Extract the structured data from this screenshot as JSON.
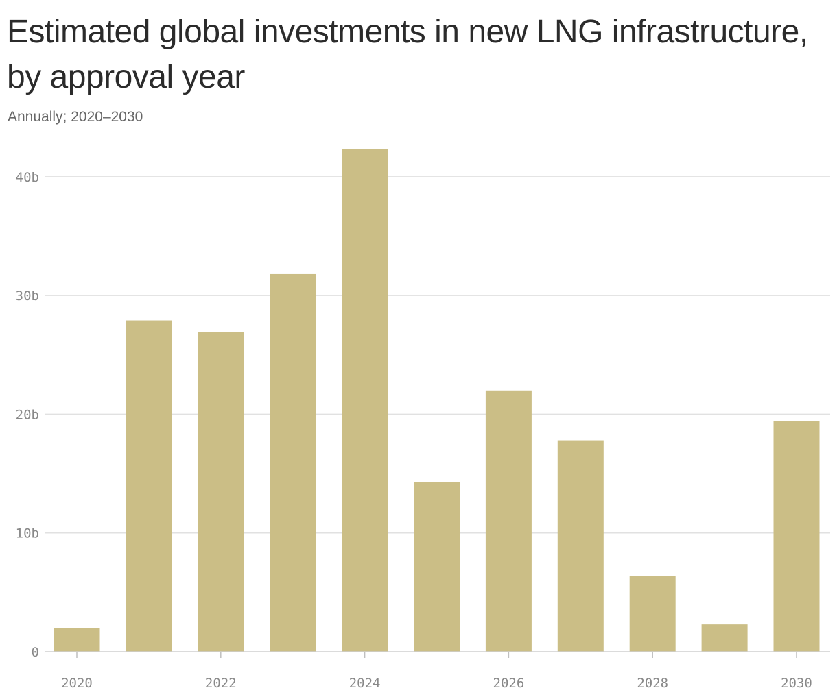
{
  "chart_data": {
    "type": "bar",
    "title": "Estimated global investments in new LNG infrastructure, by approval year",
    "subtitle": "Annually; 2020–2030",
    "categories": [
      2020,
      2021,
      2022,
      2023,
      2024,
      2025,
      2026,
      2027,
      2028,
      2029,
      2030
    ],
    "values": [
      2.0,
      27.9,
      26.9,
      31.8,
      42.3,
      14.3,
      22.0,
      17.8,
      6.4,
      2.3,
      19.4
    ],
    "series": [
      {
        "values": [
          2.0,
          27.9,
          26.9,
          31.8,
          42.3,
          14.3,
          22.0,
          17.8,
          6.4,
          2.3,
          19.4
        ],
        "color": "#cbbe86"
      }
    ],
    "y_ticks": [
      {
        "value": 0,
        "label": "0"
      },
      {
        "value": 10,
        "label": "10b"
      },
      {
        "value": 20,
        "label": "20b"
      },
      {
        "value": 30,
        "label": "30b"
      },
      {
        "value": 40,
        "label": "40b"
      }
    ],
    "x_ticks": [
      {
        "value": 2020,
        "label": "2020"
      },
      {
        "value": 2022,
        "label": "2022"
      },
      {
        "value": 2024,
        "label": "2024"
      },
      {
        "value": 2026,
        "label": "2026"
      },
      {
        "value": 2028,
        "label": "2028"
      },
      {
        "value": 2030,
        "label": "2030"
      }
    ],
    "xlabel": "",
    "ylabel": "",
    "ylim": [
      0,
      42.3
    ],
    "grid": true,
    "legend": "none"
  }
}
